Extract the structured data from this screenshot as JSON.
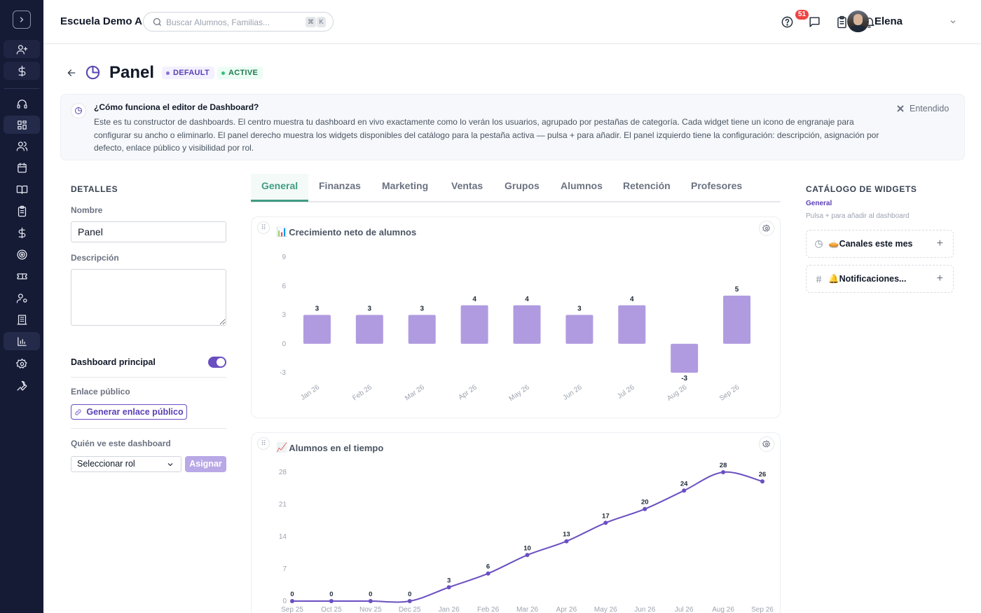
{
  "app": {
    "school_name": "Escuela Demo A",
    "search": {
      "placeholder": "Buscar Alumnos, Familias...",
      "shortcut_keys": [
        "⌘",
        "K"
      ]
    },
    "notifications_count": "51",
    "user_name": "Elena"
  },
  "sidebar": {
    "items": [
      {
        "icon": "user-plus-icon",
        "active": false
      },
      {
        "icon": "dollar-icon",
        "active": false
      },
      {
        "icon": "headset-icon",
        "active": false
      },
      {
        "icon": "dashboard-icon",
        "active": true
      },
      {
        "icon": "users-icon",
        "active": false
      },
      {
        "icon": "calendar-icon",
        "active": false
      },
      {
        "icon": "book-icon",
        "active": false
      },
      {
        "icon": "clipboard-icon",
        "active": false
      },
      {
        "icon": "dollar-icon",
        "active": false
      },
      {
        "icon": "target-icon",
        "active": false
      },
      {
        "icon": "ticket-icon",
        "active": false
      },
      {
        "icon": "user-cog-icon",
        "active": false
      },
      {
        "icon": "building-icon",
        "active": false
      },
      {
        "icon": "bar-chart-icon",
        "active": true
      },
      {
        "icon": "gear-icon",
        "active": false
      },
      {
        "icon": "wrench-icon",
        "active": false
      }
    ]
  },
  "page": {
    "title": "Panel",
    "badges": {
      "default": "DEFAULT",
      "active": "ACTIVE"
    }
  },
  "banner": {
    "title": "¿Cómo funciona el editor de Dashboard?",
    "text": "Este es tu constructor de dashboards. El centro muestra tu dashboard en vivo exactamente como lo verán los usuarios, agrupado por pestañas de categoría. Cada widget tiene un icono de engranaje para configurar su ancho o eliminarlo. El panel derecho muestra los widgets disponibles del catálogo para la pestaña activa — pulsa + para añadir. El panel izquierdo tiene la configuración: descripción, asignación por defecto, enlace público y visibilidad por rol.",
    "dismiss_label": "Entendido"
  },
  "details": {
    "heading": "DETALLES",
    "name_label": "Nombre",
    "name_value": "Panel",
    "description_label": "Descripción",
    "description_value": "",
    "main_dashboard_label": "Dashboard principal",
    "main_dashboard_on": true,
    "public_link_label": "Enlace público",
    "public_link_button": "Generar enlace público",
    "visibility_label": "Quién ve este dashboard",
    "role_select_value": "Seleccionar rol",
    "assign_button": "Asignar"
  },
  "tabs": [
    "General",
    "Finanzas",
    "Marketing",
    "Ventas",
    "Grupos",
    "Alumnos",
    "Retención",
    "Profesores"
  ],
  "active_tab": "General",
  "widgets": [
    {
      "emoji": "📊",
      "title": "Crecimiento neto de alumnos"
    },
    {
      "emoji": "📈",
      "title": "Alumnos en el tiempo"
    }
  ],
  "chart_data": [
    {
      "type": "bar",
      "title": "Crecimiento neto de alumnos",
      "categories": [
        "Jan 26",
        "Feb 26",
        "Mar 26",
        "Apr 26",
        "May 26",
        "Jun 26",
        "Jul 26",
        "Aug 26",
        "Sep 26"
      ],
      "values": [
        3,
        3,
        3,
        4,
        4,
        3,
        4,
        -3,
        5
      ],
      "y_ticks": [
        -3,
        0,
        3,
        6,
        9
      ],
      "ylim": [
        -3,
        9
      ],
      "color": "#b09be0",
      "grid": false,
      "data_labels": true
    },
    {
      "type": "line",
      "title": "Alumnos en el tiempo",
      "categories": [
        "Sep 25",
        "Oct 25",
        "Nov 25",
        "Dec 25",
        "Jan 26",
        "Feb 26",
        "Mar 26",
        "Apr 26",
        "May 26",
        "Jun 26",
        "Jul 26",
        "Aug 26",
        "Sep 26"
      ],
      "values": [
        0,
        0,
        0,
        0,
        3,
        6,
        10,
        13,
        17,
        20,
        24,
        28,
        26
      ],
      "y_ticks": [
        0,
        7,
        14,
        21,
        28
      ],
      "ylim": [
        0,
        28
      ],
      "color": "#6a4fc2",
      "grid": false,
      "data_labels": true
    }
  ],
  "catalog": {
    "heading": "CATÁLOGO DE WIDGETS",
    "category": "General",
    "hint": "Pulsa + para añadir al dashboard",
    "items": [
      {
        "icon": "pie-chart-icon",
        "emoji": "🥧",
        "label": "Canales este mes"
      },
      {
        "icon": "hash-icon",
        "emoji": "🔔",
        "label": "Notificaciones..."
      }
    ]
  }
}
